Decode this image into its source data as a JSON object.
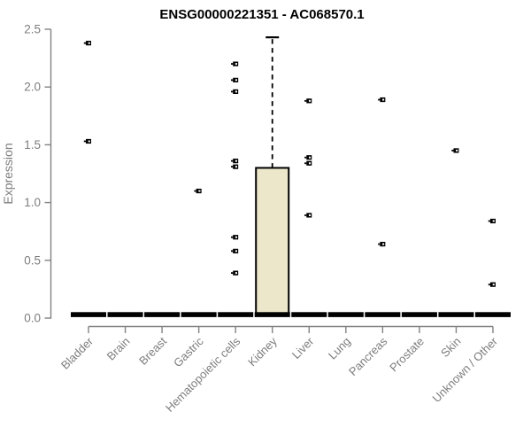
{
  "chart_data": {
    "type": "boxplot",
    "title": "ENSG00000221351 - AC068570.1",
    "xlabel": "",
    "ylabel": "Expression",
    "ylim": [
      0,
      2.5
    ],
    "yticks": [
      0.0,
      0.5,
      1.0,
      1.5,
      2.0,
      2.5
    ],
    "ytick_labels": [
      "0.0",
      "0.5",
      "1.0",
      "1.5",
      "2.0",
      "2.5"
    ],
    "grid": "off",
    "legend": "none",
    "categories": [
      {
        "name": "Bladder",
        "median": 0.03,
        "outliers": [
          2.38,
          1.53
        ]
      },
      {
        "name": "Brain",
        "median": 0.03,
        "outliers": []
      },
      {
        "name": "Breast",
        "median": 0.03,
        "outliers": []
      },
      {
        "name": "Gastric",
        "median": 0.03,
        "outliers": [
          1.1
        ]
      },
      {
        "name": "Hematopoietic cells",
        "median": 0.03,
        "outliers": [
          2.2,
          2.06,
          1.96,
          1.36,
          1.31,
          0.7,
          0.58,
          0.39
        ]
      },
      {
        "name": "Kidney",
        "median": 0.03,
        "outliers": [],
        "box": {
          "q1": 0.03,
          "q3": 1.3,
          "whisker_high": 2.43
        }
      },
      {
        "name": "Liver",
        "median": 0.03,
        "outliers": [
          1.88,
          1.39,
          1.34,
          0.89
        ]
      },
      {
        "name": "Lung",
        "median": 0.03,
        "outliers": []
      },
      {
        "name": "Pancreas",
        "median": 0.03,
        "outliers": [
          1.89,
          0.64
        ]
      },
      {
        "name": "Prostate",
        "median": 0.03,
        "outliers": []
      },
      {
        "name": "Skin",
        "median": 0.03,
        "outliers": [
          1.45
        ]
      },
      {
        "name": "Unknown / Other",
        "median": 0.03,
        "outliers": [
          0.84,
          0.29
        ]
      }
    ]
  },
  "colors": {
    "background": "#ffffff",
    "title_text": "#000000",
    "axis": "#828282",
    "tick_label": "#7d7d7d",
    "box_fill": "#ece7cb",
    "box_border": "#000000",
    "median": "#000000",
    "point": "#000000"
  }
}
